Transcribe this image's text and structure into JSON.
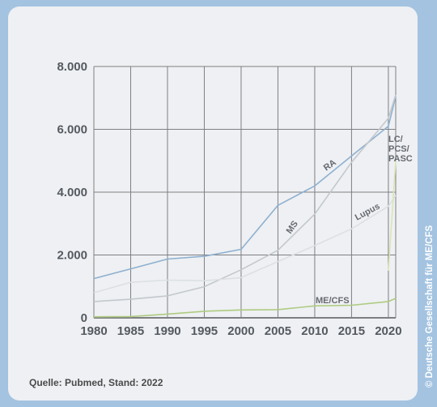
{
  "chart_data": {
    "type": "line",
    "x": [
      1980,
      1985,
      1990,
      1995,
      2000,
      2005,
      2010,
      2015,
      2020,
      2021
    ],
    "xticks": [
      "1980",
      "1985",
      "1990",
      "1995",
      "2000",
      "2005",
      "2010",
      "2015",
      "2020"
    ],
    "yticks": [
      "0",
      "2.000",
      "4.000",
      "6.000",
      "8.000"
    ],
    "ylim": [
      0,
      8000
    ],
    "xlim": [
      1980,
      2021
    ],
    "grid": true,
    "series": [
      {
        "name": "RA",
        "color": "#8eb0cf",
        "values": [
          1250,
          1560,
          1870,
          1960,
          2180,
          3580,
          4200,
          5150,
          6100,
          7050
        ]
      },
      {
        "name": "MS",
        "color": "#c3c8cd",
        "values": [
          520,
          590,
          700,
          990,
          1530,
          2150,
          3300,
          4950,
          6350,
          7100
        ]
      },
      {
        "name": "Lupus",
        "color": "#dde0e3",
        "values": [
          800,
          1130,
          1200,
          1180,
          1280,
          1790,
          2300,
          2830,
          3550,
          3900
        ]
      },
      {
        "name": "ME/CFS",
        "color": "#aecb80",
        "values": [
          30,
          40,
          120,
          210,
          250,
          260,
          380,
          400,
          520,
          620
        ]
      },
      {
        "name": "LC/PCS/PASC",
        "label_lines": [
          "LC/",
          "PCS/",
          "PASC"
        ],
        "color": "#d8e6b5",
        "x": [
          2020,
          2021
        ],
        "values": [
          1500,
          5000
        ]
      }
    ]
  },
  "footer": {
    "source": "Quelle: Pubmed, Stand: 2022",
    "credit": "© Deutsche Gesellschaft für ME/CFS"
  }
}
